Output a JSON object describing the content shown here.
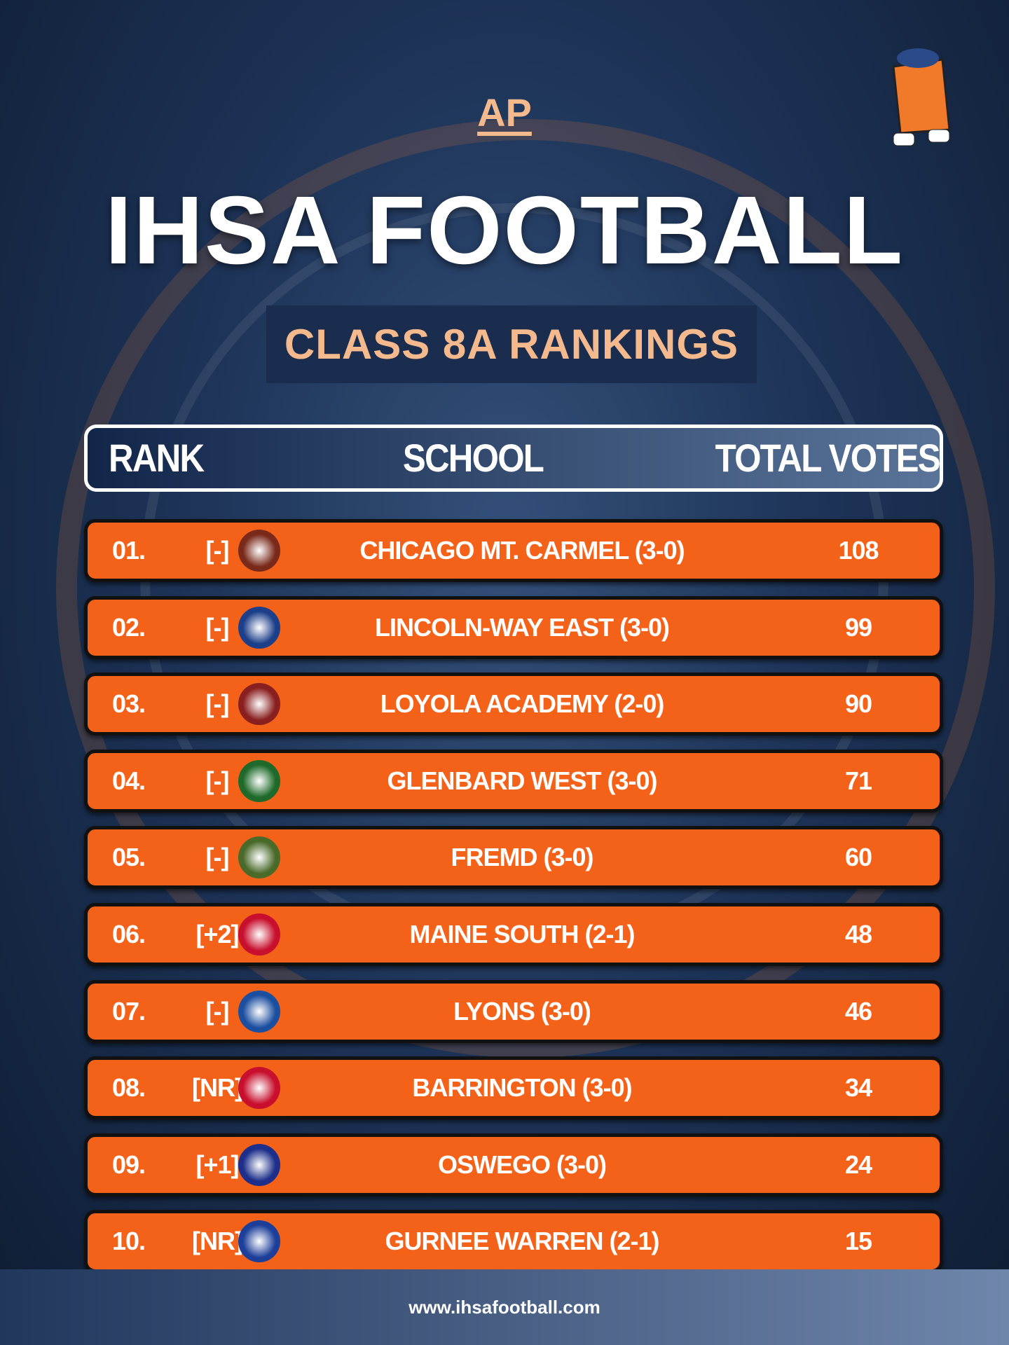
{
  "header": {
    "badge": "AP",
    "title": "IHSA FOOTBALL",
    "subtitle": "CLASS 8A RANKINGS"
  },
  "table": {
    "columns": [
      "RANK",
      "SCHOOL",
      "TOTAL VOTES"
    ],
    "rows": [
      [
        "01.",
        "[-]",
        "CHICAGO MT. CARMEL (3-0)",
        108
      ],
      [
        "02.",
        "[-]",
        "LINCOLN-WAY EAST (3-0)",
        99
      ],
      [
        "03.",
        "[-]",
        "LOYOLA ACADEMY (2-0)",
        90
      ],
      [
        "04.",
        "[-]",
        "GLENBARD WEST (3-0)",
        71
      ],
      [
        "05.",
        "[-]",
        "FREMD (3-0)",
        60
      ],
      [
        "06.",
        "[+2]",
        "MAINE SOUTH (2-1)",
        48
      ],
      [
        "07.",
        "[-]",
        "LYONS (3-0)",
        46
      ],
      [
        "08.",
        "[NR]",
        "BARRINGTON (3-0)",
        34
      ],
      [
        "09.",
        "[+1]",
        "OSWEGO (3-0)",
        24
      ],
      [
        "10.",
        "[NR]",
        "GURNEE WARREN (2-1)",
        15
      ]
    ]
  },
  "footer": {
    "url": "www.ihsafootball.com"
  }
}
